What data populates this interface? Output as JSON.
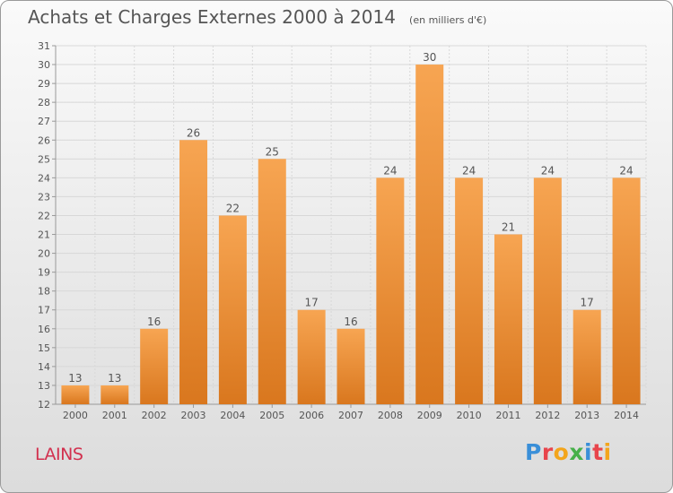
{
  "header": {
    "title": "Achats et Charges Externes 2000 à 2014",
    "unit_note": "(en milliers d'€)"
  },
  "footer": {
    "commune": "LAINS",
    "brand": "Proxiti"
  },
  "colors": {
    "bar_top": "#f7a552",
    "bar_bottom": "#d9771e",
    "commune": "#d2304e",
    "axis_text": "#555555",
    "grid": "#d8d8d8"
  },
  "brand_letters": [
    {
      "ch": "P",
      "color": "#3a8fd8"
    },
    {
      "ch": "r",
      "color": "#e8454c"
    },
    {
      "ch": "o",
      "color": "#f3a51c"
    },
    {
      "ch": "x",
      "color": "#47b04a"
    },
    {
      "ch": "i",
      "color": "#3a8fd8"
    },
    {
      "ch": "t",
      "color": "#e8454c"
    },
    {
      "ch": "i",
      "color": "#f3a51c"
    }
  ],
  "chart_data": {
    "type": "bar",
    "title": "Achats et Charges Externes 2000 à 2014",
    "subtitle": "(en milliers d'€)",
    "xlabel": "",
    "ylabel": "",
    "categories": [
      "2000",
      "2001",
      "2002",
      "2003",
      "2004",
      "2005",
      "2006",
      "2007",
      "2008",
      "2009",
      "2010",
      "2011",
      "2012",
      "2013",
      "2014"
    ],
    "values": [
      13,
      13,
      16,
      26,
      22,
      25,
      17,
      16,
      24,
      30,
      24,
      21,
      24,
      17,
      24
    ],
    "ylim": [
      12,
      31
    ],
    "yticks": [
      12,
      13,
      14,
      15,
      16,
      17,
      18,
      19,
      20,
      21,
      22,
      23,
      24,
      25,
      26,
      27,
      28,
      29,
      30,
      31
    ],
    "grid": true,
    "data_labels": true
  }
}
